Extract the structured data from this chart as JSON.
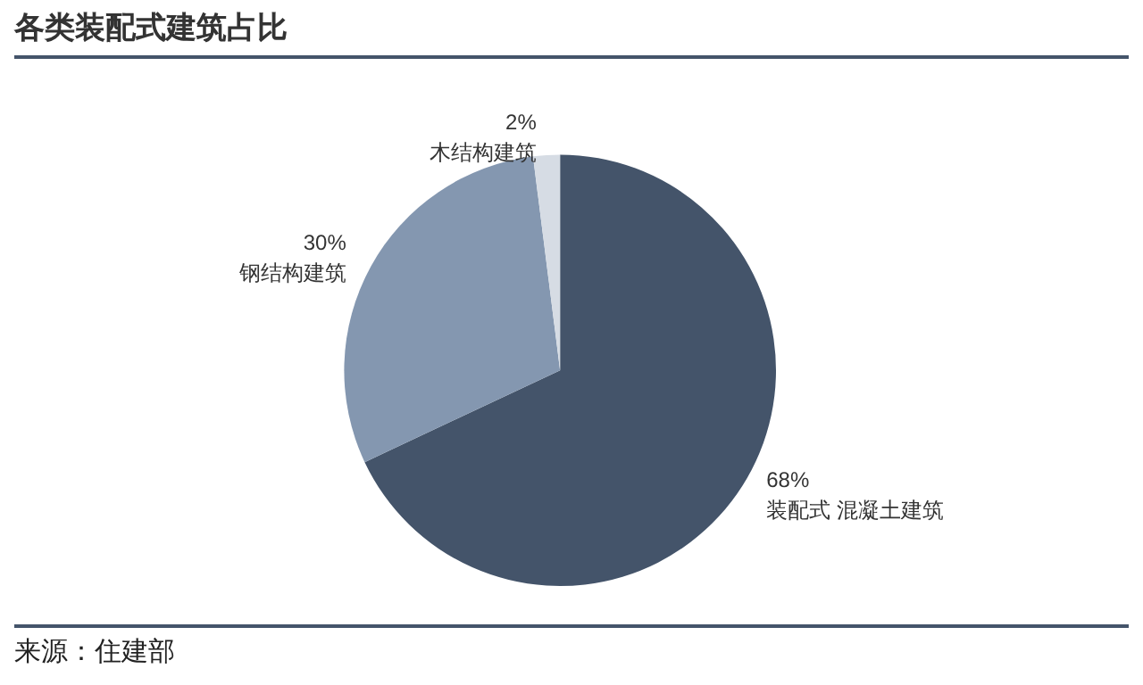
{
  "chart_data": {
    "type": "pie",
    "title": "各类装配式建筑占比",
    "categories": [
      "装配式 混凝土建筑",
      "钢结构建筑",
      "木结构建筑"
    ],
    "values": [
      68,
      30,
      2
    ],
    "value_labels": [
      "68%",
      "30%",
      "2%"
    ],
    "colors": [
      "#44546a",
      "#8497b0",
      "#d6dce4"
    ],
    "annotations": [
      "来源：住建部"
    ]
  }
}
